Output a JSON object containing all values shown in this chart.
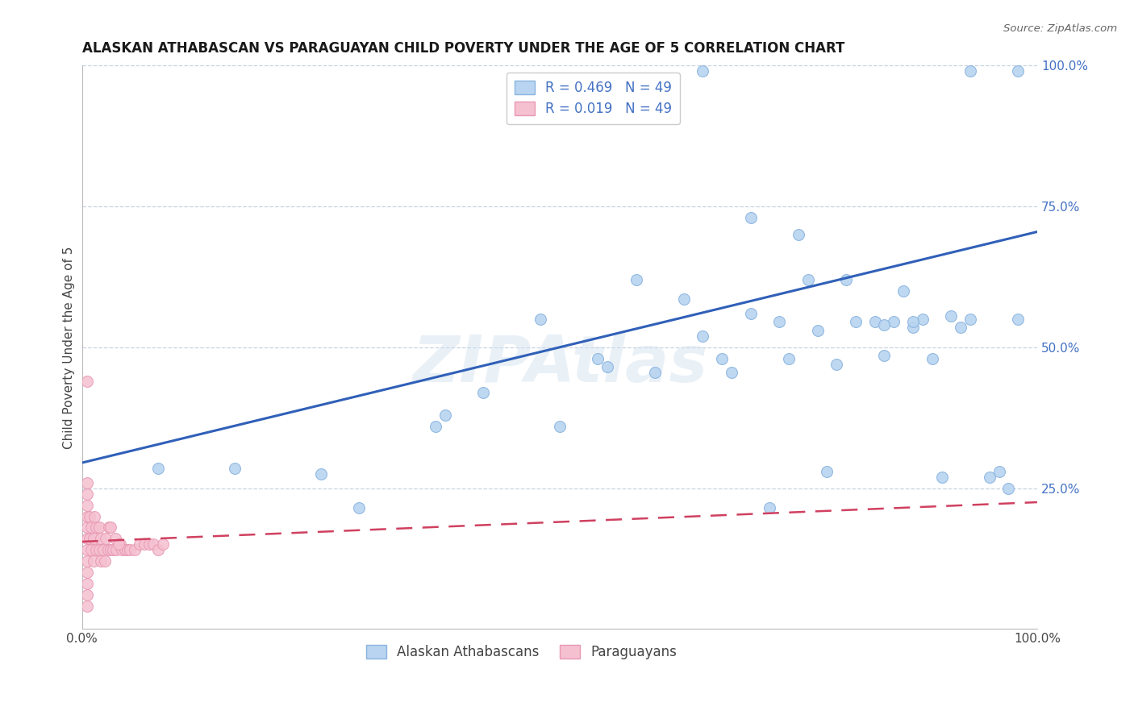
{
  "title": "ALASKAN ATHABASCAN VS PARAGUAYAN CHILD POVERTY UNDER THE AGE OF 5 CORRELATION CHART",
  "source": "Source: ZipAtlas.com",
  "ylabel": "Child Poverty Under the Age of 5",
  "watermark": "ZIPAtlas",
  "legend_blue_r": "R = 0.469",
  "legend_blue_n": "N = 49",
  "legend_pink_r": "R = 0.019",
  "legend_pink_n": "N = 49",
  "legend_label1": "Alaskan Athabascans",
  "legend_label2": "Paraguayans",
  "xlim": [
    0,
    1
  ],
  "ylim": [
    0,
    1
  ],
  "xtick_labels": [
    "0.0%",
    "100.0%"
  ],
  "xtick_positions": [
    0.0,
    1.0
  ],
  "ytick_labels": [
    "100.0%",
    "75.0%",
    "50.0%",
    "25.0%"
  ],
  "ytick_positions": [
    1.0,
    0.75,
    0.5,
    0.25
  ],
  "blue_dots_x": [
    0.08,
    0.16,
    0.38,
    0.48,
    0.54,
    0.58,
    0.63,
    0.65,
    0.67,
    0.7,
    0.73,
    0.74,
    0.76,
    0.77,
    0.79,
    0.81,
    0.83,
    0.84,
    0.86,
    0.87,
    0.88,
    0.89,
    0.91,
    0.92,
    0.93,
    0.95,
    0.96,
    0.97,
    0.98,
    0.65,
    0.7,
    0.75,
    0.8,
    0.55,
    0.6,
    0.68,
    0.85,
    0.9,
    0.37,
    0.42,
    0.5,
    0.25,
    0.29,
    0.72,
    0.78,
    0.84,
    0.87,
    0.93,
    0.98
  ],
  "blue_dots_y": [
    0.285,
    0.285,
    0.38,
    0.55,
    0.48,
    0.62,
    0.585,
    0.52,
    0.48,
    0.56,
    0.545,
    0.48,
    0.62,
    0.53,
    0.47,
    0.545,
    0.545,
    0.485,
    0.6,
    0.535,
    0.55,
    0.48,
    0.555,
    0.535,
    0.55,
    0.27,
    0.28,
    0.25,
    0.99,
    0.99,
    0.73,
    0.7,
    0.62,
    0.465,
    0.455,
    0.455,
    0.545,
    0.27,
    0.36,
    0.42,
    0.36,
    0.275,
    0.215,
    0.215,
    0.28,
    0.54,
    0.545,
    0.99,
    0.55
  ],
  "pink_dots_x": [
    0.005,
    0.005,
    0.005,
    0.005,
    0.005,
    0.005,
    0.005,
    0.005,
    0.005,
    0.005,
    0.005,
    0.005,
    0.008,
    0.008,
    0.01,
    0.01,
    0.012,
    0.012,
    0.013,
    0.015,
    0.015,
    0.018,
    0.018,
    0.02,
    0.02,
    0.022,
    0.024,
    0.025,
    0.027,
    0.028,
    0.03,
    0.03,
    0.032,
    0.035,
    0.036,
    0.04,
    0.042,
    0.045,
    0.048,
    0.05,
    0.055,
    0.06,
    0.065,
    0.07,
    0.075,
    0.08,
    0.085,
    0.005,
    0.038
  ],
  "pink_dots_y": [
    0.04,
    0.06,
    0.08,
    0.1,
    0.12,
    0.14,
    0.16,
    0.18,
    0.2,
    0.22,
    0.24,
    0.26,
    0.16,
    0.2,
    0.14,
    0.18,
    0.12,
    0.16,
    0.2,
    0.14,
    0.18,
    0.14,
    0.18,
    0.12,
    0.16,
    0.14,
    0.12,
    0.16,
    0.14,
    0.18,
    0.14,
    0.18,
    0.14,
    0.16,
    0.14,
    0.15,
    0.14,
    0.14,
    0.14,
    0.14,
    0.14,
    0.15,
    0.15,
    0.15,
    0.15,
    0.14,
    0.15,
    0.44,
    0.15
  ],
  "blue_line_x": [
    0.0,
    1.0
  ],
  "blue_line_y": [
    0.295,
    0.705
  ],
  "pink_line_x": [
    0.0,
    1.0
  ],
  "pink_line_y": [
    0.155,
    0.225
  ],
  "dot_size": 100,
  "blue_dot_color": "#b8d4f0",
  "pink_dot_color": "#f5c0d0",
  "blue_dot_edge": "#8ab4e0",
  "pink_dot_edge": "#e898b4",
  "blue_line_color": "#3060b8",
  "pink_line_color": "#d04060",
  "grid_color": "#c8d4e0",
  "background_color": "#ffffff",
  "title_fontsize": 12,
  "axis_label_fontsize": 11,
  "tick_fontsize": 11,
  "right_tick_color": "#4472c4"
}
